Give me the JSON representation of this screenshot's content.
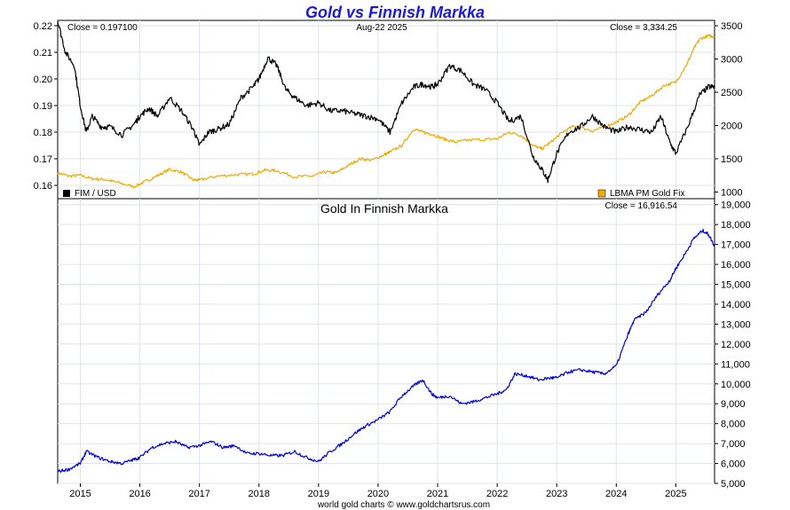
{
  "chart_data": [
    {
      "type": "line",
      "title": "Gold vs Finnish Markka",
      "date_label": "Aug-22  2025",
      "left_close": "Close = 0.197100",
      "right_close": "Close = 3,334.25",
      "left_axis": {
        "ylim": [
          0.155,
          0.222
        ],
        "ticks": [
          "0.16",
          "0.17",
          "0.18",
          "0.19",
          "0.20",
          "0.21",
          "0.22"
        ]
      },
      "right_axis": {
        "ylim": [
          900,
          3580
        ],
        "ticks": [
          "1000",
          "1500",
          "2000",
          "2500",
          "3000",
          "3500"
        ]
      },
      "xlim": [
        2014.62,
        2025.65
      ],
      "legend_placement": "bottom",
      "series": [
        {
          "name": "FIM / USD",
          "axis": "left",
          "color": "#000000",
          "x": [
            2014.62,
            2014.75,
            2014.9,
            2015.0,
            2015.1,
            2015.2,
            2015.35,
            2015.5,
            2015.7,
            2015.9,
            2016.0,
            2016.15,
            2016.3,
            2016.5,
            2016.7,
            2016.9,
            2017.0,
            2017.15,
            2017.3,
            2017.5,
            2017.7,
            2017.9,
            2018.0,
            2018.15,
            2018.3,
            2018.45,
            2018.6,
            2018.8,
            2019.0,
            2019.2,
            2019.4,
            2019.6,
            2019.8,
            2020.0,
            2020.2,
            2020.4,
            2020.6,
            2020.75,
            2020.9,
            2021.0,
            2021.2,
            2021.4,
            2021.6,
            2021.8,
            2022.0,
            2022.2,
            2022.4,
            2022.6,
            2022.75,
            2022.85,
            2023.0,
            2023.2,
            2023.4,
            2023.6,
            2023.8,
            2024.0,
            2024.2,
            2024.4,
            2024.6,
            2024.75,
            2024.9,
            2025.0,
            2025.2,
            2025.4,
            2025.55,
            2025.65
          ],
          "values": [
            0.222,
            0.21,
            0.205,
            0.19,
            0.18,
            0.186,
            0.182,
            0.182,
            0.179,
            0.183,
            0.186,
            0.189,
            0.186,
            0.193,
            0.188,
            0.181,
            0.175,
            0.18,
            0.181,
            0.183,
            0.193,
            0.197,
            0.2,
            0.208,
            0.205,
            0.196,
            0.193,
            0.19,
            0.191,
            0.188,
            0.188,
            0.187,
            0.186,
            0.185,
            0.18,
            0.191,
            0.197,
            0.198,
            0.197,
            0.198,
            0.205,
            0.203,
            0.198,
            0.196,
            0.191,
            0.184,
            0.186,
            0.171,
            0.166,
            0.162,
            0.172,
            0.18,
            0.182,
            0.186,
            0.182,
            0.18,
            0.182,
            0.181,
            0.18,
            0.186,
            0.176,
            0.172,
            0.182,
            0.194,
            0.197,
            0.197
          ]
        },
        {
          "name": "LBMA PM Gold Fix",
          "axis": "right",
          "color": "#f0aa00",
          "x": [
            2014.62,
            2014.8,
            2015.0,
            2015.2,
            2015.4,
            2015.6,
            2015.9,
            2016.1,
            2016.3,
            2016.5,
            2016.7,
            2016.9,
            2017.0,
            2017.3,
            2017.6,
            2017.9,
            2018.1,
            2018.3,
            2018.6,
            2018.9,
            2019.1,
            2019.3,
            2019.5,
            2019.7,
            2019.9,
            2020.1,
            2020.2,
            2020.4,
            2020.6,
            2020.75,
            2020.9,
            2021.1,
            2021.3,
            2021.5,
            2021.8,
            2022.0,
            2022.2,
            2022.4,
            2022.6,
            2022.75,
            2022.9,
            2023.1,
            2023.3,
            2023.6,
            2023.8,
            2024.0,
            2024.2,
            2024.4,
            2024.6,
            2024.8,
            2025.0,
            2025.2,
            2025.3,
            2025.4,
            2025.55,
            2025.65
          ],
          "values": [
            1290,
            1240,
            1250,
            1200,
            1190,
            1150,
            1080,
            1160,
            1250,
            1340,
            1300,
            1180,
            1180,
            1240,
            1260,
            1270,
            1330,
            1320,
            1230,
            1240,
            1300,
            1290,
            1400,
            1500,
            1480,
            1560,
            1600,
            1700,
            1950,
            1900,
            1870,
            1800,
            1750,
            1780,
            1790,
            1800,
            1900,
            1850,
            1700,
            1650,
            1750,
            1900,
            2000,
            1920,
            1980,
            2050,
            2150,
            2350,
            2450,
            2600,
            2650,
            2950,
            3150,
            3300,
            3350,
            3334
          ]
        }
      ]
    },
    {
      "type": "line",
      "title": "Gold In Finnish Markka",
      "right_close": "Close = 16,916.54",
      "right_axis": {
        "ylim": [
          5000,
          19300
        ],
        "ticks": [
          "5,000",
          "6,000",
          "7,000",
          "8,000",
          "9,000",
          "10,000",
          "11,000",
          "12,000",
          "13,000",
          "14,000",
          "15,000",
          "16,000",
          "17,000",
          "18,000",
          "19,000"
        ]
      },
      "xlim": [
        2014.62,
        2025.65
      ],
      "x_ticks": [
        "2015",
        "2016",
        "2017",
        "2018",
        "2019",
        "2020",
        "2021",
        "2022",
        "2023",
        "2024",
        "2025"
      ],
      "footer": "world gold charts © www.goldchartsrus.com",
      "series": [
        {
          "color": "#0000dd",
          "x": [
            2014.62,
            2014.8,
            2015.0,
            2015.1,
            2015.3,
            2015.5,
            2015.7,
            2015.9,
            2016.0,
            2016.2,
            2016.4,
            2016.6,
            2016.8,
            2017.0,
            2017.2,
            2017.4,
            2017.6,
            2017.8,
            2018.0,
            2018.2,
            2018.4,
            2018.6,
            2018.8,
            2019.0,
            2019.2,
            2019.4,
            2019.6,
            2019.8,
            2020.0,
            2020.2,
            2020.4,
            2020.6,
            2020.75,
            2020.9,
            2021.0,
            2021.2,
            2021.4,
            2021.6,
            2021.8,
            2022.0,
            2022.15,
            2022.3,
            2022.5,
            2022.7,
            2022.9,
            2023.0,
            2023.2,
            2023.4,
            2023.6,
            2023.8,
            2024.0,
            2024.2,
            2024.3,
            2024.5,
            2024.7,
            2024.9,
            2025.0,
            2025.15,
            2025.3,
            2025.45,
            2025.55,
            2025.65
          ],
          "values": [
            5600,
            5700,
            6000,
            6600,
            6300,
            6100,
            6000,
            6200,
            6300,
            6800,
            7000,
            7100,
            6800,
            6900,
            7100,
            6800,
            6900,
            6500,
            6500,
            6400,
            6400,
            6600,
            6300,
            6100,
            6600,
            7000,
            7500,
            7900,
            8200,
            8600,
            9400,
            9900,
            10200,
            9500,
            9300,
            9400,
            9000,
            9100,
            9300,
            9500,
            9700,
            10500,
            10400,
            10200,
            10300,
            10300,
            10600,
            10700,
            10600,
            10500,
            10900,
            12500,
            13200,
            13600,
            14500,
            15200,
            15800,
            16500,
            17300,
            17700,
            17500,
            16916.54
          ]
        }
      ]
    }
  ]
}
